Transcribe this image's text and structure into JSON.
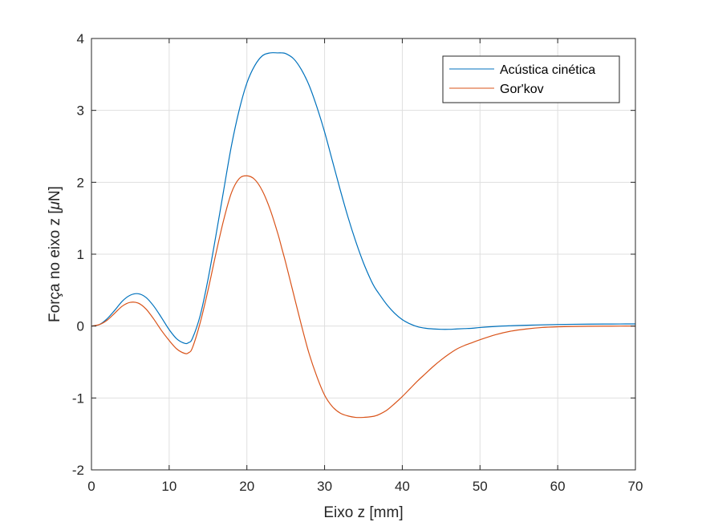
{
  "chart_data": {
    "type": "line",
    "title": "",
    "xlabel": "Eixo z [mm]",
    "ylabel_parts": [
      "Força no eixo z [",
      "μ",
      "N]"
    ],
    "xlim": [
      0,
      70
    ],
    "ylim": [
      -2,
      4
    ],
    "xticks": [
      0,
      10,
      20,
      30,
      40,
      50,
      60,
      70
    ],
    "xtick_labels": [
      "0",
      "10",
      "20",
      "30",
      "40",
      "50",
      "60",
      "70"
    ],
    "yticks": [
      -2,
      -1,
      0,
      1,
      2,
      3,
      4
    ],
    "ytick_labels": [
      "-2",
      "-1",
      "0",
      "1",
      "2",
      "3",
      "4"
    ],
    "grid": true,
    "legend_position": "top-right",
    "x": [
      0,
      1,
      2,
      3,
      4,
      5,
      6,
      7,
      8,
      9,
      10,
      11,
      12,
      12.5,
      13,
      14,
      15,
      16,
      17,
      18,
      19,
      20,
      21,
      22,
      23,
      24,
      24.5,
      25,
      26,
      27,
      28,
      29,
      30,
      31,
      32,
      33,
      34,
      35,
      36,
      36.5,
      37,
      38,
      39,
      40,
      41,
      42,
      43,
      44,
      45,
      46,
      47,
      48,
      49,
      50,
      52,
      54,
      56,
      58,
      60,
      62,
      64,
      66,
      68,
      70
    ],
    "series": [
      {
        "name": "Acústica cinética",
        "color": "#0072BD",
        "values": [
          0,
          0.02,
          0.1,
          0.22,
          0.35,
          0.43,
          0.45,
          0.4,
          0.28,
          0.12,
          -0.05,
          -0.18,
          -0.24,
          -0.23,
          -0.17,
          0.15,
          0.65,
          1.25,
          1.88,
          2.5,
          3.0,
          3.38,
          3.62,
          3.76,
          3.8,
          3.8,
          3.8,
          3.79,
          3.72,
          3.57,
          3.35,
          3.05,
          2.7,
          2.3,
          1.9,
          1.52,
          1.18,
          0.88,
          0.63,
          0.53,
          0.45,
          0.3,
          0.18,
          0.09,
          0.03,
          -0.01,
          -0.03,
          -0.04,
          -0.045,
          -0.045,
          -0.04,
          -0.035,
          -0.03,
          -0.02,
          -0.005,
          0.005,
          0.012,
          0.018,
          0.022,
          0.025,
          0.027,
          0.028,
          0.029,
          0.03
        ]
      },
      {
        "name": "Gor'kov",
        "color": "#D95319",
        "values": [
          0,
          0.02,
          0.08,
          0.18,
          0.28,
          0.33,
          0.32,
          0.24,
          0.1,
          -0.06,
          -0.2,
          -0.32,
          -0.38,
          -0.37,
          -0.3,
          0.05,
          0.5,
          1.0,
          1.47,
          1.85,
          2.05,
          2.09,
          2.04,
          1.88,
          1.62,
          1.28,
          1.08,
          0.88,
          0.45,
          0.02,
          -0.38,
          -0.7,
          -0.96,
          -1.12,
          -1.21,
          -1.25,
          -1.27,
          -1.27,
          -1.26,
          -1.25,
          -1.23,
          -1.17,
          -1.08,
          -0.98,
          -0.87,
          -0.76,
          -0.66,
          -0.56,
          -0.47,
          -0.39,
          -0.32,
          -0.27,
          -0.23,
          -0.19,
          -0.12,
          -0.07,
          -0.04,
          -0.02,
          -0.01,
          -0.005,
          -0.002,
          -0.001,
          0,
          0
        ]
      }
    ]
  }
}
